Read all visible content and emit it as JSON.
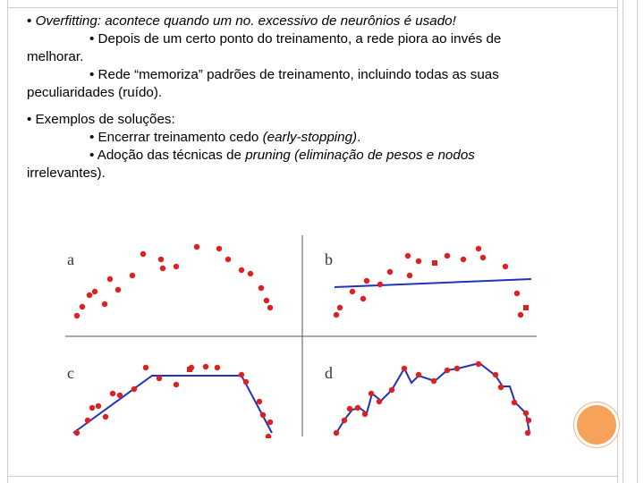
{
  "slide": {
    "bullet1": {
      "marker": "•",
      "term": "Overfitting:",
      "text": "acontece quando um no. excessivo de neurônios é usado!",
      "sub1_a": "• Depois de um certo ponto do treinamento, a rede piora ao invés de",
      "sub1_b": "melhorar.",
      "sub2_a": "• Rede “memoriza” padrões de treinamento, incluindo todas as suas",
      "sub2_b": "peculiaridades (ruído)."
    },
    "bullet2": {
      "title": "• Exemplos de soluções:",
      "sub1_prefix": "• Encerrar treinamento cedo ",
      "sub1_italic": "(early-stopping)",
      "sub1_suffix": ".",
      "sub2_prefix": "• Adoção das técnicas de ",
      "sub2_italic": "pruning (eliminação de pesos e nodos",
      "sub2_b": "irrelevantes)."
    },
    "figure": {
      "panels": [
        "a",
        "b",
        "c",
        "d"
      ],
      "point_color": "#e02020",
      "line_color": "#2233bb"
    },
    "accent_color": "#f7a25a"
  }
}
